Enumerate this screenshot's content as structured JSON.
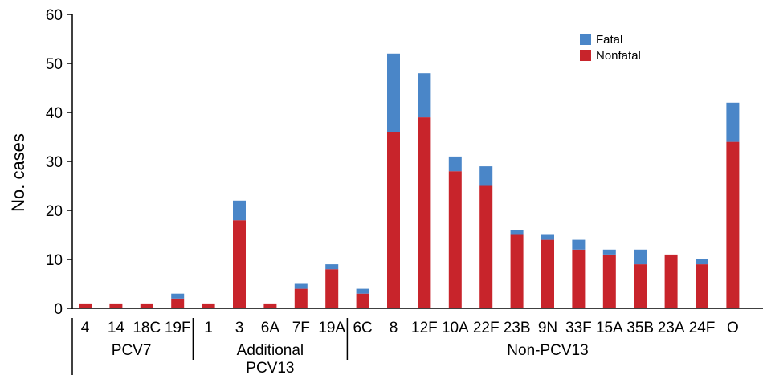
{
  "chart_data": {
    "type": "bar",
    "stacked": true,
    "ylabel": "No. cases",
    "xlabel": "",
    "ylim": [
      0,
      60
    ],
    "yticks": [
      0,
      10,
      20,
      30,
      40,
      50,
      60
    ],
    "grid": false,
    "legend_position": "top-right",
    "categories": [
      "4",
      "14",
      "18C",
      "19F",
      "1",
      "3",
      "6A",
      "7F",
      "19A",
      "6C",
      "8",
      "12F",
      "10A",
      "22F",
      "23B",
      "9N",
      "33F",
      "15A",
      "35B",
      "23A",
      "24F",
      "O"
    ],
    "series": [
      {
        "name": "Nonfatal",
        "color": "#c8242b",
        "values": [
          1,
          1,
          1,
          2,
          1,
          18,
          1,
          4,
          8,
          3,
          36,
          39,
          28,
          25,
          15,
          14,
          12,
          11,
          9,
          11,
          9,
          34
        ]
      },
      {
        "name": "Fatal",
        "color": "#4a86c8",
        "values": [
          0,
          0,
          0,
          1,
          0,
          4,
          0,
          1,
          1,
          1,
          16,
          9,
          3,
          4,
          1,
          1,
          2,
          1,
          3,
          0,
          1,
          8
        ]
      }
    ],
    "legend_order": [
      "Fatal",
      "Nonfatal"
    ],
    "groups": [
      {
        "label_lines": [
          "PCV7"
        ],
        "start": 0,
        "end": 3
      },
      {
        "label_lines": [
          "Additional",
          "PCV13"
        ],
        "start": 4,
        "end": 8
      },
      {
        "label_lines": [
          "Non-PCV13"
        ],
        "start": 9,
        "end": 21
      }
    ]
  }
}
